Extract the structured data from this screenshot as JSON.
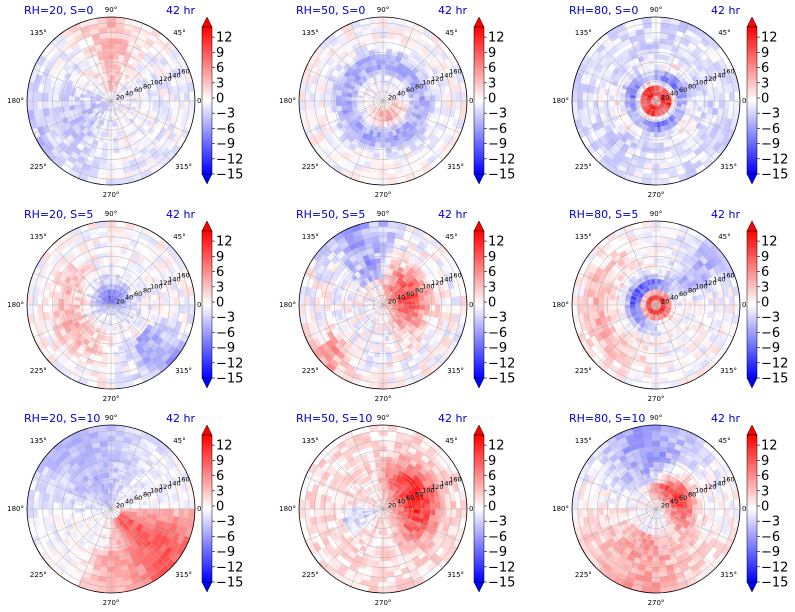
{
  "figure": {
    "colorbar_ticks": [
      "12",
      "9",
      "6",
      "3",
      "0",
      "−3",
      "−6",
      "−9",
      "−12",
      "−15"
    ],
    "colorbar_values": [
      12,
      9,
      6,
      3,
      0,
      -3,
      -6,
      -9,
      -12,
      -15
    ],
    "colorbar_range": [
      -15,
      14
    ],
    "angle_labels": [
      "90°",
      "45°",
      "0°",
      "315°",
      "270°",
      "225°",
      "180°",
      "135°"
    ],
    "radial_labels": [
      "20",
      "40",
      "60",
      "80",
      "100",
      "120",
      "140",
      "160"
    ],
    "colors": {
      "title": "#0000cc",
      "positive": "#ff0000",
      "negative": "#0000ff",
      "neutral": "#ffffff",
      "grid": "#b0b0b0"
    }
  },
  "chart_data": [
    {
      "type": "heatmap",
      "projection": "polar",
      "title": "RH=20, S=0",
      "time_label": "42 hr",
      "pattern": "weak-mixed"
    },
    {
      "type": "heatmap",
      "projection": "polar",
      "title": "RH=50, S=0",
      "time_label": "42 hr",
      "pattern": "ring-blue"
    },
    {
      "type": "heatmap",
      "projection": "polar",
      "title": "RH=80, S=0",
      "time_label": "42 hr",
      "pattern": "core-red"
    },
    {
      "type": "heatmap",
      "projection": "polar",
      "title": "RH=20, S=5",
      "time_label": "42 hr",
      "pattern": "blue-center"
    },
    {
      "type": "heatmap",
      "projection": "polar",
      "title": "RH=50, S=5",
      "time_label": "42 hr",
      "pattern": "red-east"
    },
    {
      "type": "heatmap",
      "projection": "polar",
      "title": "RH=80, S=5",
      "time_label": "42 hr",
      "pattern": "core-red-blue"
    },
    {
      "type": "heatmap",
      "projection": "polar",
      "title": "RH=20, S=10",
      "time_label": "42 hr",
      "pattern": "southeast-red"
    },
    {
      "type": "heatmap",
      "projection": "polar",
      "title": "RH=50, S=10",
      "time_label": "42 hr",
      "pattern": "red-east-band"
    },
    {
      "type": "heatmap",
      "projection": "polar",
      "title": "RH=80, S=10",
      "time_label": "42 hr",
      "pattern": "north-blue-south-red"
    }
  ]
}
